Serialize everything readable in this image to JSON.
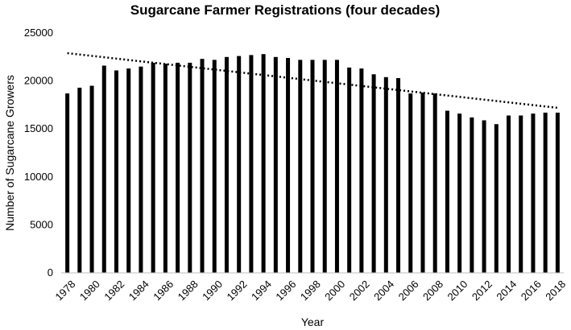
{
  "chart_data": {
    "type": "bar",
    "title": "Sugarcane Farmer Registrations (four decades)",
    "xlabel": "Year",
    "ylabel": "Number of Sugarcane Growers",
    "ylim": [
      0,
      25000
    ],
    "y_ticks": [
      "0",
      "5000",
      "10000",
      "15000",
      "20000",
      "25000"
    ],
    "x_tick_labels": [
      "1978",
      "1980",
      "1982",
      "1984",
      "1986",
      "1988",
      "1990",
      "1992",
      "1994",
      "1996",
      "1998",
      "2000",
      "2002",
      "2004",
      "2006",
      "2008",
      "2010",
      "2012",
      "2014",
      "2016",
      "2018"
    ],
    "categories": [
      "1978",
      "1979",
      "1980",
      "1981",
      "1982",
      "1983",
      "1984",
      "1985",
      "1986",
      "1987",
      "1988",
      "1989",
      "1990",
      "1991",
      "1992",
      "1993",
      "1994",
      "1995",
      "1996",
      "1997",
      "1998",
      "1999",
      "2000",
      "2001",
      "2002",
      "2003",
      "2004",
      "2005",
      "2006",
      "2007",
      "2008",
      "2009",
      "2010",
      "2011",
      "2012",
      "2013",
      "2014",
      "2015",
      "2016",
      "2017",
      "2018"
    ],
    "values": [
      18700,
      19300,
      19500,
      21600,
      21100,
      21300,
      21500,
      21900,
      21800,
      21900,
      21900,
      22300,
      22200,
      22500,
      22600,
      22700,
      22800,
      22500,
      22400,
      22200,
      22200,
      22200,
      22200,
      21400,
      21300,
      20700,
      20400,
      20300,
      18700,
      18800,
      18700,
      16900,
      16600,
      16200,
      15900,
      15500,
      16400,
      16400,
      16600,
      16700,
      16700
    ],
    "trendline": {
      "type": "linear",
      "style": "dotted",
      "start": 22900,
      "end": 17200
    },
    "grid": false,
    "legend": "none",
    "colors": {
      "bar": "#000000",
      "trend": "#000000",
      "axis": "#bfbfbf"
    }
  }
}
